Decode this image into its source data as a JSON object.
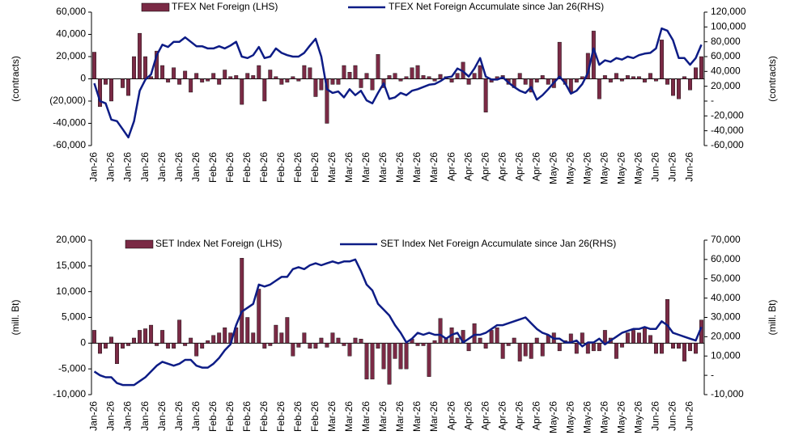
{
  "chart_data": [
    {
      "type": "bar_line",
      "ylabel": "(contracts)",
      "y2label": "(contracts)",
      "categories": [
        "Jan-26",
        null,
        null,
        "Jan-26",
        null,
        null,
        "Jan-26",
        null,
        null,
        "Jan-26",
        null,
        null,
        "Jan-26",
        null,
        null,
        "Jan-26",
        null,
        null,
        "Jan-26",
        null,
        null,
        "Feb-26",
        null,
        null,
        "Feb-26",
        null,
        null,
        "Feb-26",
        null,
        null,
        "Feb-26",
        null,
        null,
        "Feb-26",
        null,
        null,
        "Feb-26",
        null,
        null,
        "Feb-26",
        null,
        null,
        "Mar-26",
        null,
        null,
        "Mar-26",
        null,
        null,
        "Mar-26",
        null,
        null,
        "Mar-26",
        null,
        null,
        "Mar-26",
        null,
        null,
        "Mar-26",
        null,
        null,
        "Mar-26",
        null,
        null,
        "Apr-26",
        null,
        null,
        "Apr-26",
        null,
        null,
        "Apr-26",
        null,
        null,
        "Apr-26",
        null,
        null,
        "Apr-26",
        null,
        null,
        "Apr-26",
        null,
        null,
        "May-26",
        null,
        null,
        "May-26",
        null,
        null,
        "May-26",
        null,
        null,
        "May-26",
        null,
        null,
        "May-26",
        null,
        null,
        "May-26",
        null,
        null,
        "Jun-26",
        null,
        null,
        "Jun-26",
        null,
        null,
        "Jun-26",
        null,
        null
      ],
      "series": [
        {
          "name": "TFEX Net Foreign (LHS)",
          "color": "#7a2a45",
          "values": [
            24000,
            -25000,
            -5000,
            -20000,
            0,
            -8000,
            -15000,
            20000,
            41000,
            20000,
            2000,
            25000,
            12000,
            -3000,
            10000,
            -5000,
            7000,
            -12000,
            5000,
            -3000,
            -2000,
            5000,
            -5000,
            8000,
            2000,
            3000,
            -23000,
            5000,
            3000,
            12000,
            -20000,
            8000,
            2000,
            -5000,
            -3000,
            2000,
            -2000,
            12000,
            10000,
            -16000,
            -10000,
            -40000,
            -5000,
            -5000,
            12000,
            6000,
            12000,
            -8000,
            5000,
            -10000,
            22000,
            -8000,
            3000,
            5000,
            -2000,
            2000,
            10000,
            12000,
            3000,
            2000,
            -2000,
            4000,
            2000,
            -3000,
            5000,
            15000,
            -5000,
            5000,
            12000,
            -30000,
            -3000,
            2000,
            3000,
            -5000,
            -8000,
            5000,
            -5000,
            -12000,
            -3000,
            3000,
            -5000,
            -8000,
            33000,
            -5000,
            -12000,
            -3000,
            2000,
            23000,
            43000,
            -18000,
            3000,
            -3000,
            5000,
            -2000,
            3000,
            2000,
            2000,
            -3000,
            5000,
            -2000,
            35000,
            -5000,
            -15000,
            -18000,
            2000,
            -10000,
            10000,
            20000
          ]
        },
        {
          "name": "TFEX Net Foreign Accumulate since Jan 26(RHS)",
          "color": "#0d1c86",
          "axis": "y2",
          "values": [
            24000,
            0,
            -3000,
            -25000,
            -27000,
            -38000,
            -49000,
            -27000,
            14000,
            29000,
            36000,
            62000,
            76000,
            73000,
            80000,
            80000,
            86000,
            80000,
            74000,
            74000,
            71000,
            71000,
            74000,
            71000,
            75000,
            80000,
            60000,
            58000,
            62000,
            73000,
            58000,
            60000,
            71000,
            65000,
            62000,
            60000,
            60000,
            65000,
            75000,
            84000,
            60000,
            16000,
            11000,
            13000,
            5000,
            16000,
            8000,
            14000,
            1000,
            -3000,
            11000,
            24000,
            3000,
            5000,
            11000,
            8000,
            14000,
            16000,
            19000,
            22000,
            23000,
            27000,
            32000,
            33000,
            44000,
            40000,
            33000,
            44000,
            58000,
            33000,
            29000,
            29000,
            32000,
            25000,
            19000,
            14000,
            11000,
            19000,
            2000,
            8000,
            16000,
            25000,
            33000,
            24000,
            10000,
            14000,
            23000,
            38000,
            71000,
            49000,
            55000,
            53000,
            58000,
            56000,
            60000,
            58000,
            62000,
            64000,
            65000,
            71000,
            98000,
            95000,
            82000,
            58000,
            58000,
            49000,
            58000,
            76000
          ]
        }
      ],
      "ylim": [
        -60000,
        60000
      ],
      "yticks": [
        {
          "value": 60000,
          "label": "60,000"
        },
        {
          "value": 40000,
          "label": "40,000"
        },
        {
          "value": 20000,
          "label": "20,000"
        },
        0,
        {
          "value": -20000,
          "label": "(20,000)"
        },
        {
          "value": -40000,
          "label": "-40,000"
        },
        {
          "value": -60000,
          "label": "-60,000"
        }
      ],
      "y2lim": [
        -60000,
        120000
      ],
      "y2ticks": [
        {
          "value": 120000,
          "label": "120,000"
        },
        {
          "value": 100000,
          "label": "100,000"
        },
        {
          "value": 80000,
          "label": "80,000"
        },
        {
          "value": 60000,
          "label": "60,000"
        },
        {
          "value": 40000,
          "label": "40,000"
        },
        {
          "value": 20000,
          "label": "20,000"
        },
        {
          "value": 0,
          "label": "-"
        },
        {
          "value": -20000,
          "label": "-20,000"
        },
        {
          "value": -40000,
          "label": "-40,000"
        },
        {
          "value": -60000,
          "label": "-60,000"
        }
      ]
    },
    {
      "type": "bar_line",
      "ylabel": "(mill. Bt)",
      "y2label": "(mill. Bt)",
      "categories": [
        "Jan-26",
        null,
        null,
        "Jan-26",
        null,
        null,
        "Jan-26",
        null,
        null,
        "Jan-26",
        null,
        null,
        "Jan-26",
        null,
        null,
        "Jan-26",
        null,
        null,
        "Jan-26",
        null,
        null,
        "Feb-26",
        null,
        null,
        "Feb-26",
        null,
        null,
        "Feb-26",
        null,
        null,
        "Feb-26",
        null,
        null,
        "Feb-26",
        null,
        null,
        "Feb-26",
        null,
        null,
        "Feb-26",
        null,
        null,
        "Mar-26",
        null,
        null,
        "Mar-26",
        null,
        null,
        "Mar-26",
        null,
        null,
        "Mar-26",
        null,
        null,
        "Mar-26",
        null,
        null,
        "Mar-26",
        null,
        null,
        "Mar-26",
        null,
        null,
        "Apr-26",
        null,
        null,
        "Apr-26",
        null,
        null,
        "Apr-26",
        null,
        null,
        "Apr-26",
        null,
        null,
        "Apr-26",
        null,
        null,
        "Apr-26",
        null,
        null,
        "May-26",
        null,
        null,
        "May-26",
        null,
        null,
        "May-26",
        null,
        null,
        "May-26",
        null,
        null,
        "May-26",
        null,
        null,
        "May-26",
        null,
        null,
        "Jun-26",
        null,
        null,
        "Jun-26",
        null,
        null,
        "Jun-26",
        null,
        null
      ],
      "series": [
        {
          "name": "SET Index Net Foreign (LHS)",
          "color": "#7a2a45",
          "values": [
            2500,
            -2000,
            -1000,
            1200,
            -4000,
            -1000,
            -500,
            1000,
            2500,
            2800,
            3500,
            -500,
            2500,
            -1000,
            -1000,
            4500,
            -500,
            1000,
            -2500,
            -1000,
            500,
            1500,
            2000,
            3000,
            2000,
            3000,
            16500,
            5000,
            2000,
            10500,
            -1000,
            -500,
            3500,
            2000,
            5000,
            -2500,
            -800,
            2000,
            -1000,
            -1000,
            1000,
            -800,
            2000,
            1000,
            -500,
            -2500,
            1000,
            800,
            -7000,
            -7000,
            -1000,
            -5000,
            -8000,
            -3000,
            -5000,
            -5000,
            800,
            -500,
            -500,
            -6500,
            500,
            4800,
            1000,
            3000,
            1000,
            2500,
            -1500,
            3800,
            1000,
            -1000,
            2500,
            3000,
            -3000,
            -500,
            1000,
            -3500,
            -2500,
            -3000,
            1000,
            -2500,
            1500,
            2000,
            -1500,
            500,
            1800,
            -2000,
            2000,
            -2000,
            -1500,
            -1500,
            2500,
            1000,
            -3000,
            -800,
            2000,
            2500,
            2000,
            3000,
            1500,
            -2000,
            -2000,
            8500,
            -1000,
            -1000,
            -3500,
            -1500,
            -2000,
            4500
          ]
        },
        {
          "name": "SET Index Net Foreign Accumulate since Jan 26(RHS)",
          "color": "#0d1c86",
          "axis": "y2",
          "values": [
            2000,
            0,
            -1000,
            -1000,
            -4000,
            -5000,
            -5000,
            -5000,
            -3000,
            -1000,
            2000,
            5000,
            7000,
            6000,
            5000,
            6000,
            8000,
            8000,
            5000,
            4000,
            4000,
            6000,
            9000,
            13000,
            16000,
            26000,
            33000,
            35000,
            37000,
            47000,
            46000,
            47000,
            49000,
            51000,
            51000,
            55000,
            56000,
            55000,
            57000,
            58000,
            57000,
            58000,
            59000,
            58000,
            59000,
            59000,
            60000,
            54000,
            47000,
            44000,
            37000,
            34000,
            31000,
            26000,
            22000,
            17000,
            19000,
            22000,
            21000,
            22000,
            21000,
            21000,
            19000,
            21000,
            22000,
            17000,
            19000,
            21000,
            21000,
            22000,
            24000,
            26000,
            26000,
            27000,
            28000,
            29000,
            30000,
            27000,
            24000,
            22000,
            21000,
            19000,
            19000,
            17000,
            17000,
            18000,
            15000,
            17000,
            17000,
            19000,
            16000,
            18000,
            20000,
            22000,
            23000,
            24000,
            24000,
            25000,
            24000,
            24000,
            28000,
            26000,
            22000,
            21000,
            20000,
            19000,
            18000,
            25000
          ]
        }
      ],
      "ylim": [
        -10000,
        20000
      ],
      "yticks": [
        {
          "value": 20000,
          "label": "20,000"
        },
        {
          "value": 15000,
          "label": "15,000"
        },
        {
          "value": 10000,
          "label": "10,000"
        },
        {
          "value": 5000,
          "label": "5,000"
        },
        0,
        {
          "value": -5000,
          "label": "-5,000"
        },
        {
          "value": -10000,
          "label": "-10,000"
        }
      ],
      "y2lim": [
        -10000,
        70000
      ],
      "y2ticks": [
        {
          "value": 70000,
          "label": "70,000"
        },
        {
          "value": 60000,
          "label": "60,000"
        },
        {
          "value": 50000,
          "label": "50,000"
        },
        {
          "value": 40000,
          "label": "40,000"
        },
        {
          "value": 30000,
          "label": "30,000"
        },
        {
          "value": 20000,
          "label": "20,000"
        },
        {
          "value": 10000,
          "label": "10,000"
        },
        {
          "value": 0,
          "label": "-"
        },
        {
          "value": -10000,
          "label": "-10,000"
        }
      ]
    }
  ]
}
